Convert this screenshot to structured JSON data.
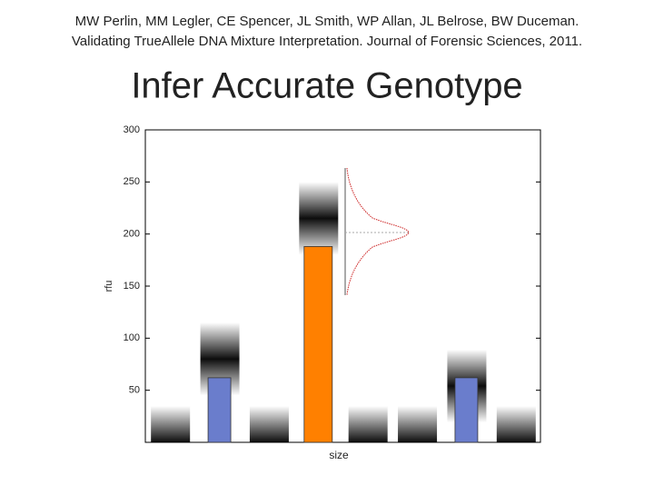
{
  "header": [
    "MW Perlin, MM Legler, CE Spencer, JL Smith, WP Allan, JL Belrose, BW Duceman.",
    "Validating TrueAllele DNA Mixture Interpretation. Journal of Forensic Sciences, 2011."
  ],
  "chart_data": {
    "type": "bar",
    "title": "Infer Accurate Genotype",
    "xlabel": "size",
    "ylabel": "rfu",
    "categories": [
      null,
      null,
      null,
      null,
      null,
      null,
      null,
      null
    ],
    "series": [
      {
        "name": null,
        "kind": "estimate",
        "color": "#000000",
        "values": [
          0,
          80,
          0,
          215,
          0,
          0,
          54,
          0
        ]
      },
      {
        "name": null,
        "kind": "bar",
        "colors": [
          "#6a7dcc",
          "#6a7dcc",
          "#6a7dcc",
          "#ff8000",
          "#6a7dcc",
          "#6a7dcc",
          "#6a7dcc",
          "#6a7dcc"
        ],
        "values": [
          null,
          62,
          null,
          188,
          null,
          null,
          62,
          null
        ]
      }
    ],
    "ylim": [
      0,
      300
    ],
    "yticks": [
      50,
      100,
      150,
      200,
      250,
      300
    ]
  }
}
